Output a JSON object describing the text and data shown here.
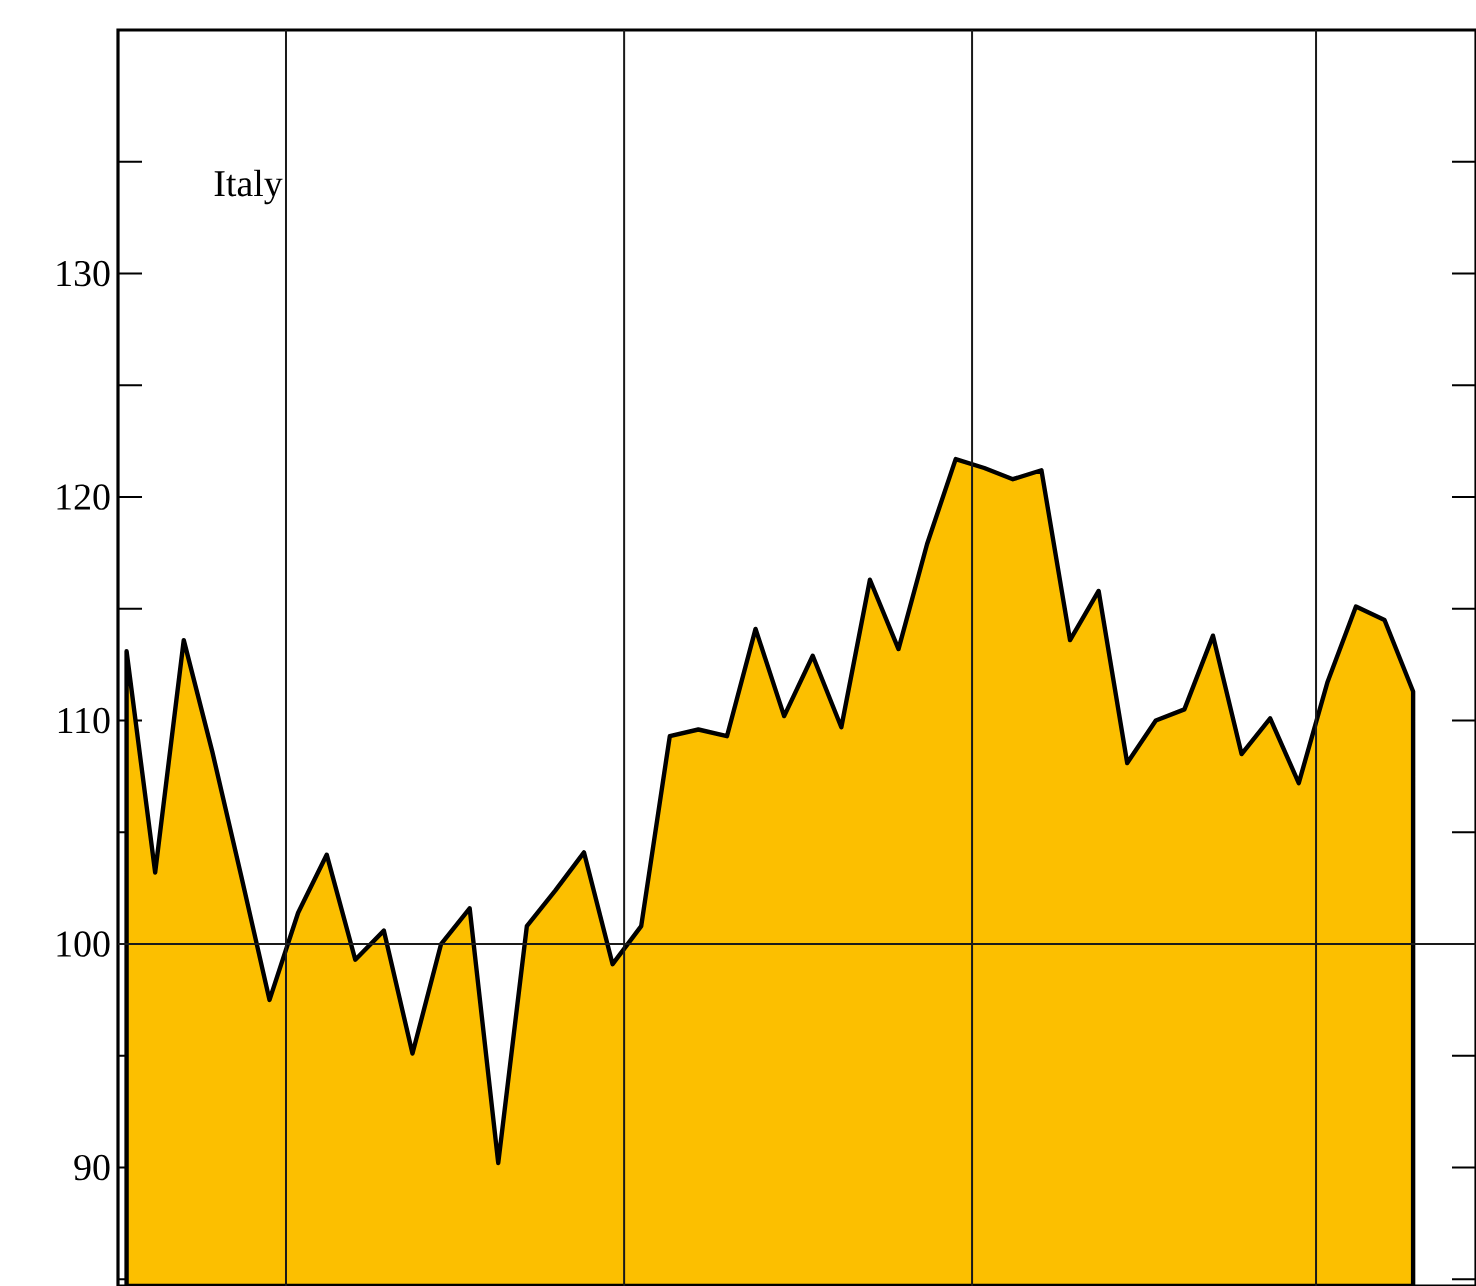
{
  "chart_data": {
    "type": "area",
    "title": "Italy",
    "categories": [
      null,
      null,
      null,
      null,
      null,
      null,
      null,
      null,
      null,
      null,
      null,
      null,
      null,
      null,
      null,
      null,
      null,
      null,
      null,
      null,
      null,
      null,
      null,
      null,
      null,
      null,
      null,
      null,
      null,
      null,
      null,
      null,
      null,
      null,
      null,
      null,
      null,
      null,
      null,
      null,
      null,
      null,
      null,
      null,
      null,
      null
    ],
    "series": [
      {
        "color": "#fcbf00",
        "values": [
          113.1,
          103.2,
          113.6,
          108.6,
          103.1,
          97.5,
          101.4,
          104.0,
          99.3,
          100.6,
          95.1,
          100.0,
          101.6,
          90.2,
          100.8,
          102.4,
          104.1,
          99.1,
          100.8,
          109.3,
          109.6,
          109.3,
          114.1,
          110.2,
          112.9,
          109.7,
          116.3,
          113.2,
          117.9,
          121.7,
          121.3,
          120.8,
          121.2,
          113.6,
          115.8,
          108.1,
          110.0,
          110.5,
          113.8,
          108.5,
          110.1,
          107.2,
          111.7,
          115.1,
          114.5,
          111.3
        ]
      }
    ],
    "ylim": [
      84.7,
      140.9
    ],
    "yticks": [
      {
        "value": 85,
        "label": null
      },
      90,
      {
        "value": 95,
        "label": null
      },
      100,
      {
        "value": 105,
        "label": null
      },
      110,
      {
        "value": 115,
        "label": null
      },
      120,
      {
        "value": 125,
        "label": null
      },
      130,
      {
        "value": 135,
        "label": null
      }
    ],
    "ref_lines": [
      {
        "axis": "y",
        "value": 100,
        "color": "#1a1a1a"
      }
    ]
  }
}
